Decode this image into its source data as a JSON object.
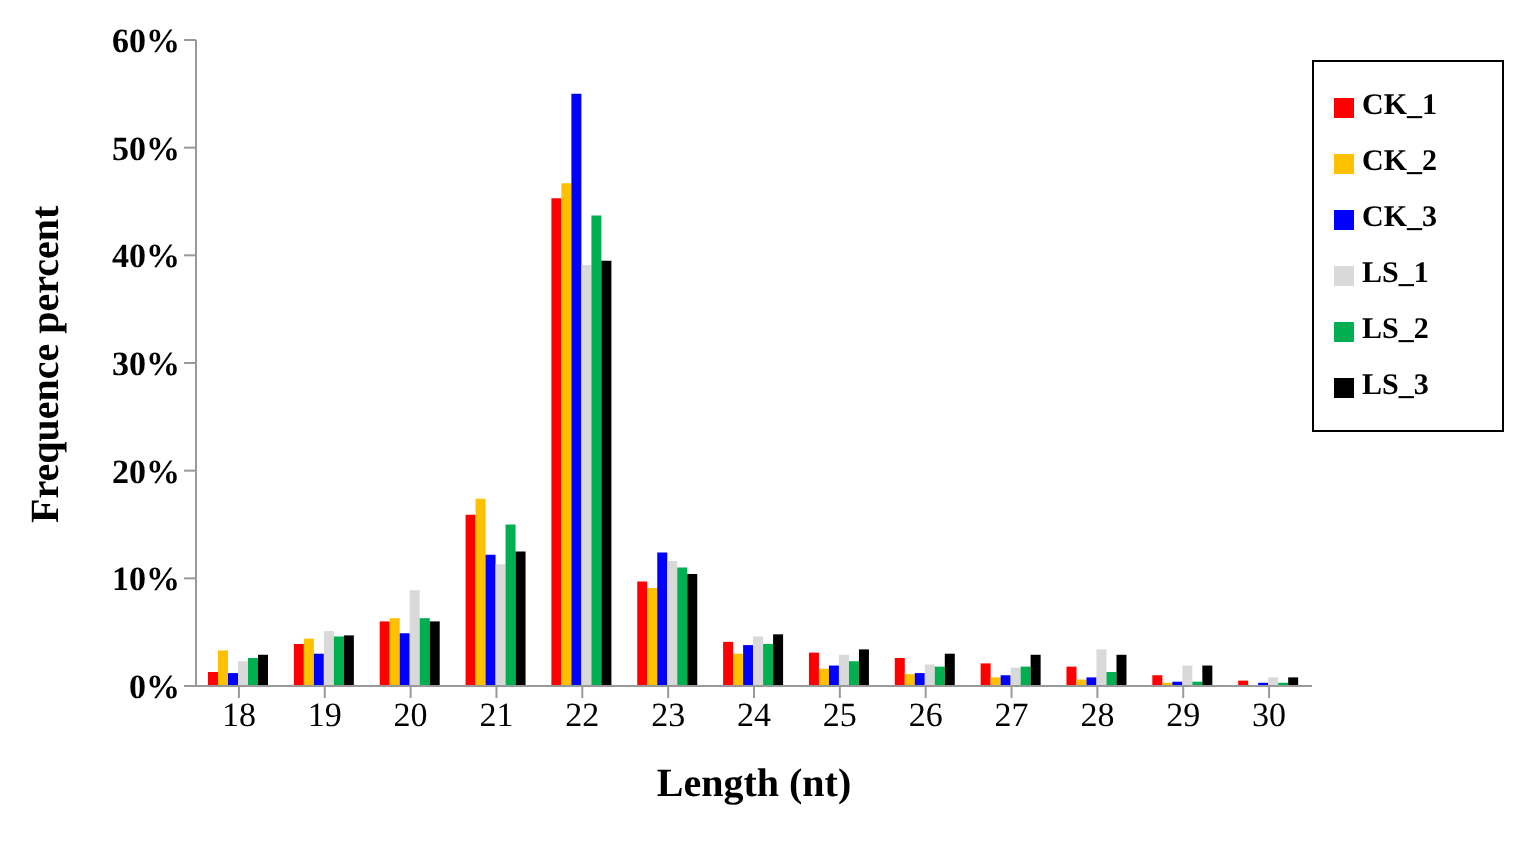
{
  "chart_data": {
    "type": "bar",
    "xlabel": "Length (nt)",
    "ylabel": "Frequence percent",
    "categories": [
      "18",
      "19",
      "20",
      "21",
      "22",
      "23",
      "24",
      "25",
      "26",
      "27",
      "28",
      "29",
      "30"
    ],
    "series": [
      {
        "name": "CK_1",
        "color": "#ff0000",
        "values": [
          1.3,
          3.9,
          6.0,
          15.9,
          45.3,
          9.7,
          4.1,
          3.1,
          2.6,
          2.1,
          1.8,
          1.0,
          0.5
        ]
      },
      {
        "name": "CK_2",
        "color": "#ffc000",
        "values": [
          3.3,
          4.4,
          6.3,
          17.4,
          46.7,
          9.1,
          3.0,
          1.6,
          1.1,
          0.8,
          0.6,
          0.3,
          null
        ]
      },
      {
        "name": "CK_3",
        "color": "#0000ff",
        "values": [
          1.2,
          3.0,
          4.9,
          12.2,
          55.0,
          12.4,
          3.8,
          1.9,
          1.2,
          1.0,
          0.8,
          0.4,
          0.3
        ]
      },
      {
        "name": "LS_1",
        "color": "#d9d9d9",
        "values": [
          2.3,
          5.1,
          8.9,
          11.3,
          39.1,
          11.6,
          4.6,
          2.9,
          2.0,
          1.7,
          3.4,
          1.9,
          0.8
        ]
      },
      {
        "name": "LS_2",
        "color": "#00b050",
        "values": [
          2.6,
          4.6,
          6.3,
          15.0,
          43.7,
          11.0,
          3.9,
          2.3,
          1.8,
          1.8,
          1.3,
          0.4,
          0.3
        ]
      },
      {
        "name": "LS_3",
        "color": "#000000",
        "values": [
          2.9,
          4.7,
          6.0,
          12.5,
          39.5,
          10.4,
          4.8,
          3.4,
          3.0,
          2.9,
          2.9,
          1.9,
          0.8
        ]
      }
    ],
    "ylim": [
      0,
      60
    ],
    "yticks": [
      {
        "value": 0,
        "label": "0%"
      },
      {
        "value": 10,
        "label": "10%"
      },
      {
        "value": 20,
        "label": "20%"
      },
      {
        "value": 30,
        "label": "30%"
      },
      {
        "value": 40,
        "label": "40%"
      },
      {
        "value": 50,
        "label": "50%"
      },
      {
        "value": 60,
        "label": "60%"
      }
    ],
    "grid": false,
    "legend": "top right"
  }
}
